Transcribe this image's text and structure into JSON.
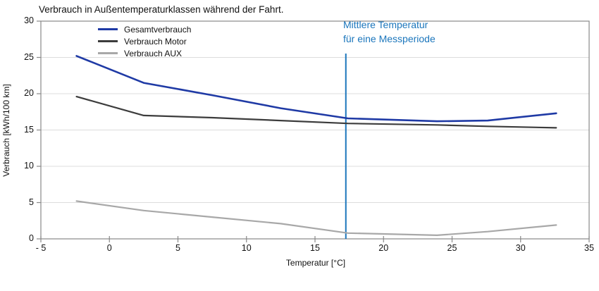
{
  "chart_data": {
    "type": "line",
    "title": "Verbrauch in Außentemperaturklassen während der Fahrt.",
    "xlabel": "Temperatur [°C]",
    "ylabel": "Verbrauch [kWh/100 km]",
    "xlim": [
      -5,
      35
    ],
    "ylim": [
      0,
      30
    ],
    "grid": "horizontal",
    "legend_position": "top-left-inside",
    "xticks": {
      "values": [
        -5,
        0,
        5,
        10,
        15,
        20,
        25,
        30,
        35
      ],
      "labels": [
        "- 5",
        "0",
        "5",
        "10",
        "15",
        "20",
        "25",
        "30",
        "35"
      ]
    },
    "yticks": {
      "values": [
        0,
        5,
        10,
        15,
        20,
        25,
        30
      ],
      "labels": [
        "0",
        "5",
        "10",
        "15",
        "20",
        "25",
        "30"
      ]
    },
    "x": [
      -2.4,
      2.5,
      7.5,
      12.5,
      17.4,
      23.9,
      27.6,
      32.6
    ],
    "series": [
      {
        "name": "Gesamtverbrauch",
        "color": "#1f3aa5",
        "width": 2.6,
        "values": [
          25.2,
          21.5,
          19.8,
          18.0,
          16.6,
          16.2,
          16.3,
          17.3
        ]
      },
      {
        "name": "Verbrauch Motor",
        "color": "#3c3c3c",
        "width": 2.2,
        "values": [
          19.6,
          17.0,
          16.7,
          16.3,
          15.9,
          15.7,
          15.5,
          15.3
        ]
      },
      {
        "name": "Verbrauch AUX",
        "color": "#a8a8a8",
        "width": 2.2,
        "values": [
          5.2,
          3.9,
          3.0,
          2.1,
          0.8,
          0.5,
          1.0,
          1.9
        ]
      }
    ],
    "annotation": {
      "label_line1": "Mittlere Temperatur",
      "label_line2": "für eine Messperiode",
      "x_value": 17.25,
      "color": "#1b76bc"
    },
    "colors": {
      "grid": "#dcdcdc",
      "axis": "#898989",
      "text": "#111111"
    }
  }
}
